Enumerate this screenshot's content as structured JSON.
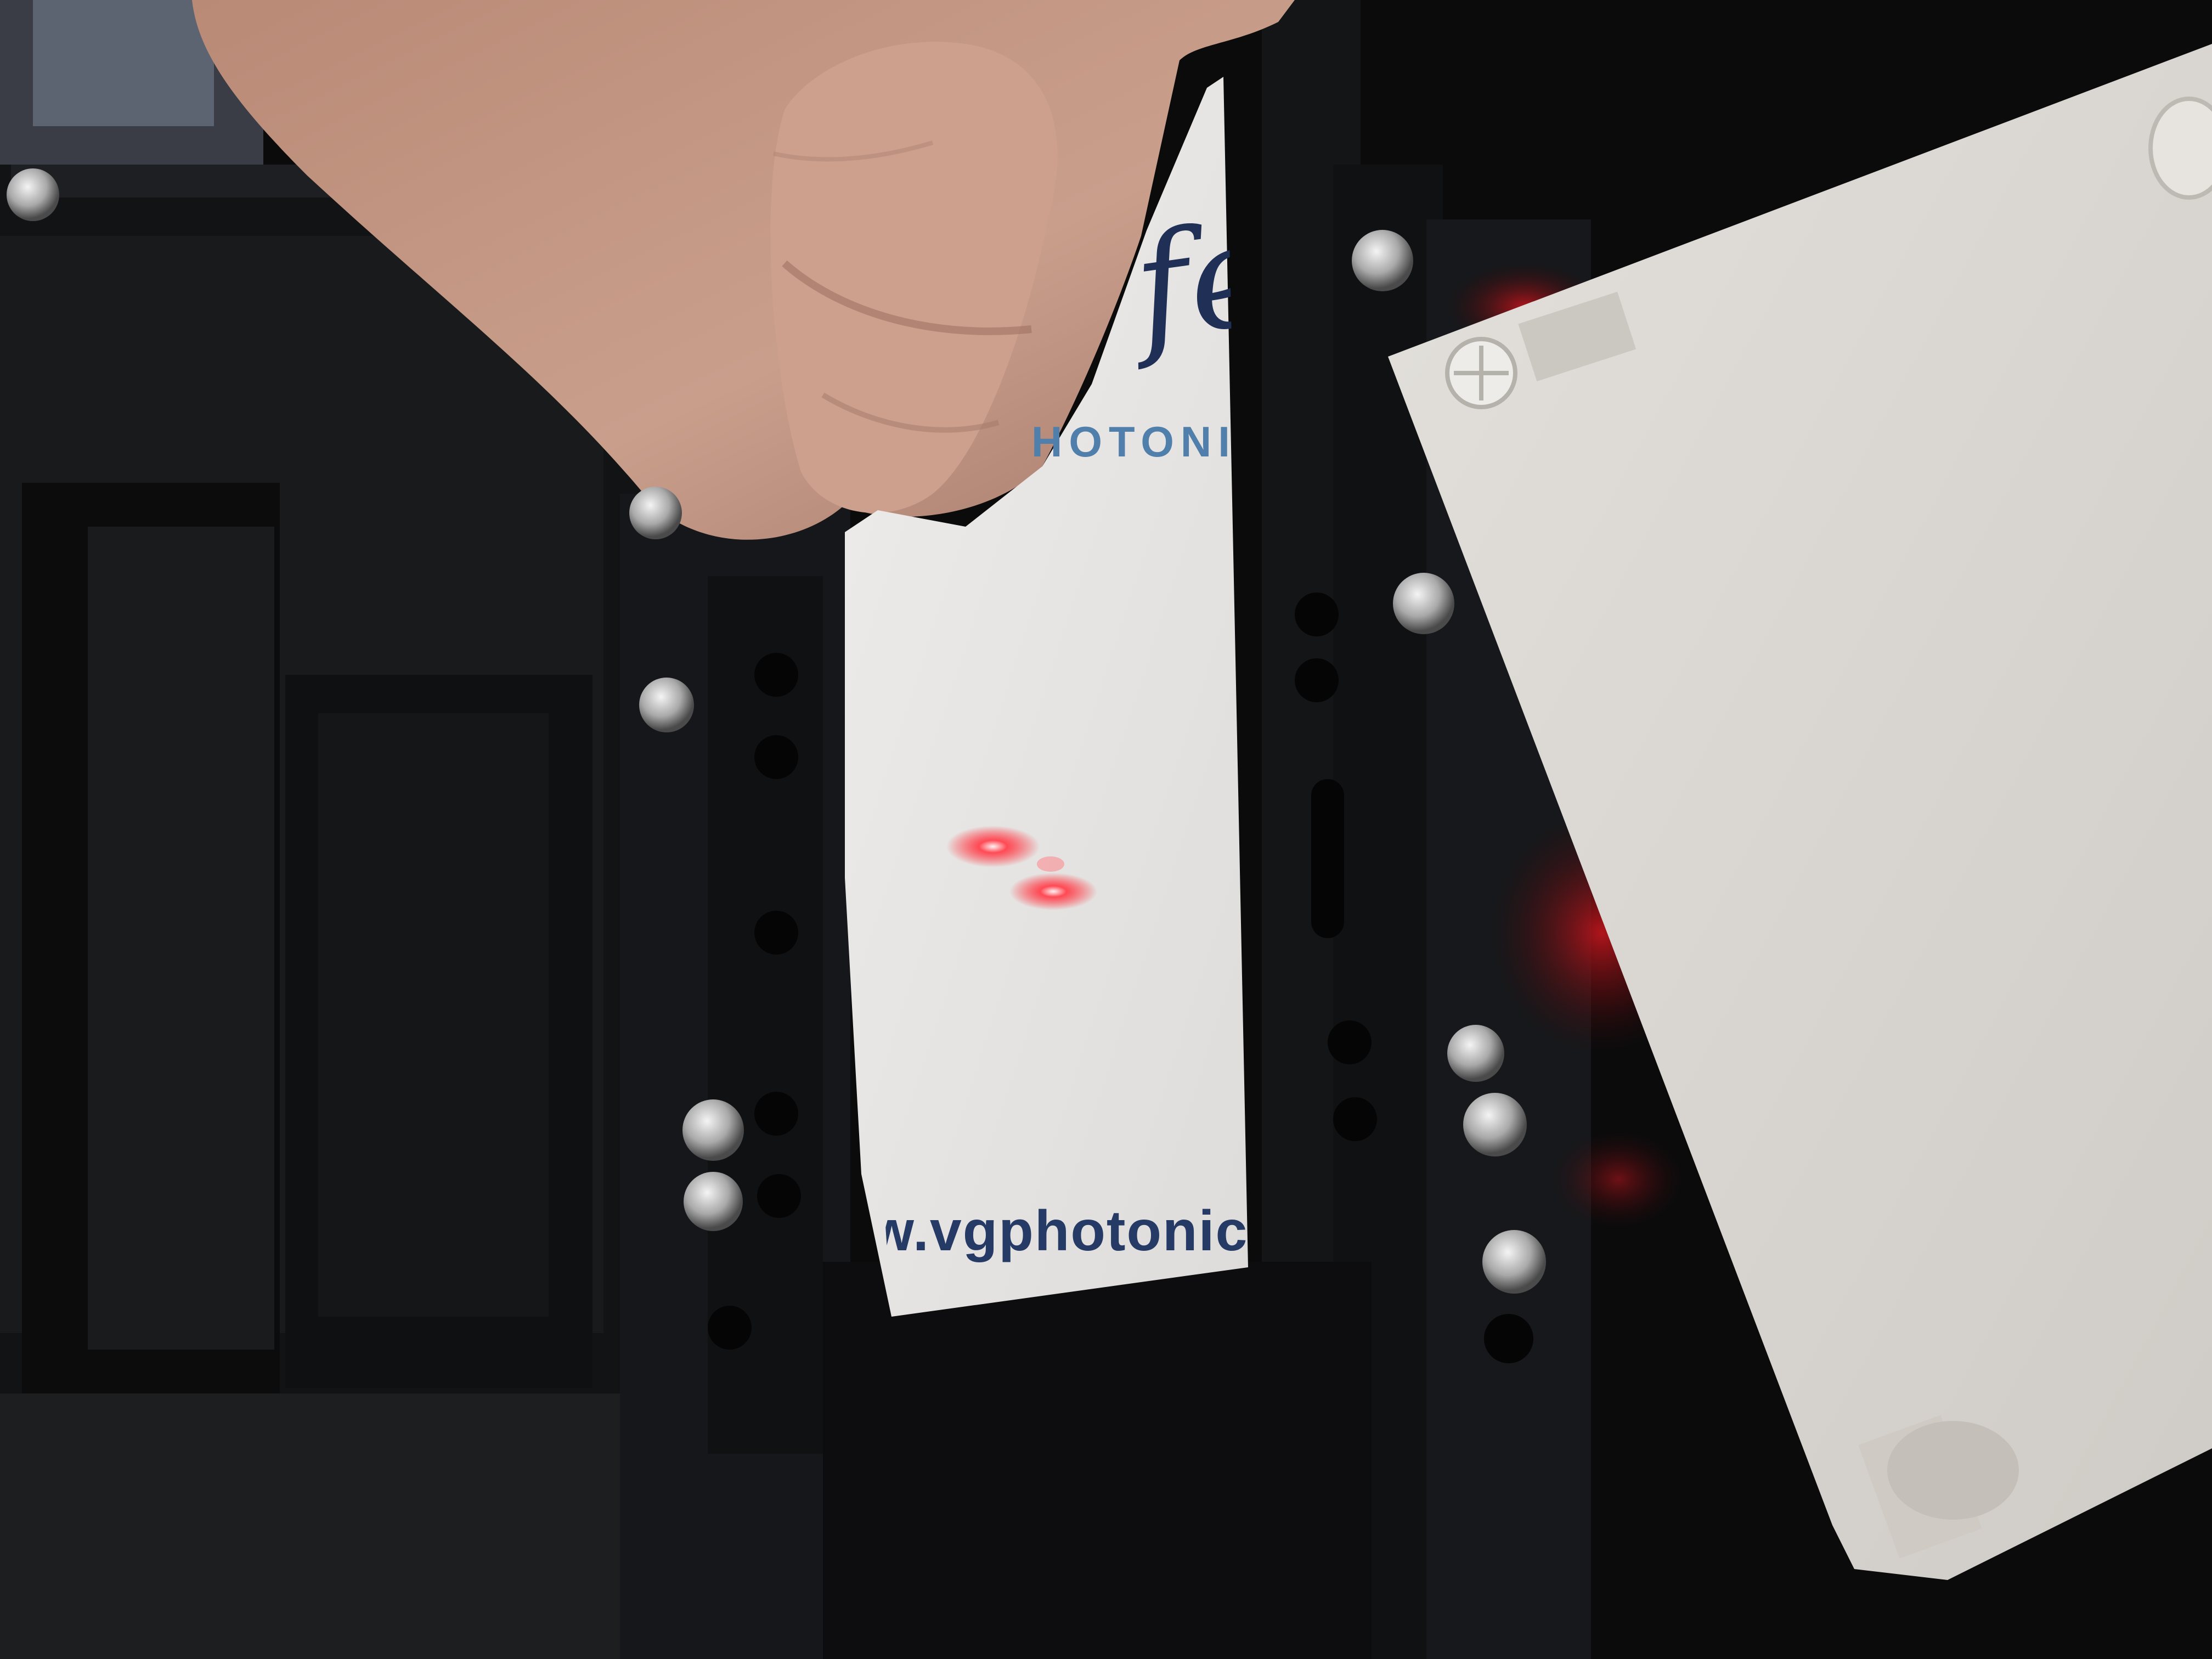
{
  "photo": {
    "subject": "hand-holding-card-with-laser-spots",
    "colors": {
      "background": "#0b0b0c",
      "housing": "#17181a",
      "card": "#e6e4e2",
      "panel": "#d9d6d1",
      "skin": "#c69a86",
      "laser": "#ff3a46",
      "glow": "#b0141a",
      "ink_dark": "#263a66",
      "ink_light": "#4f7faa"
    },
    "laser_spot_count": 2
  },
  "card": {
    "script_text": "feli",
    "brand_text": "HOTONI",
    "url_text": "w.vgphotonics"
  }
}
